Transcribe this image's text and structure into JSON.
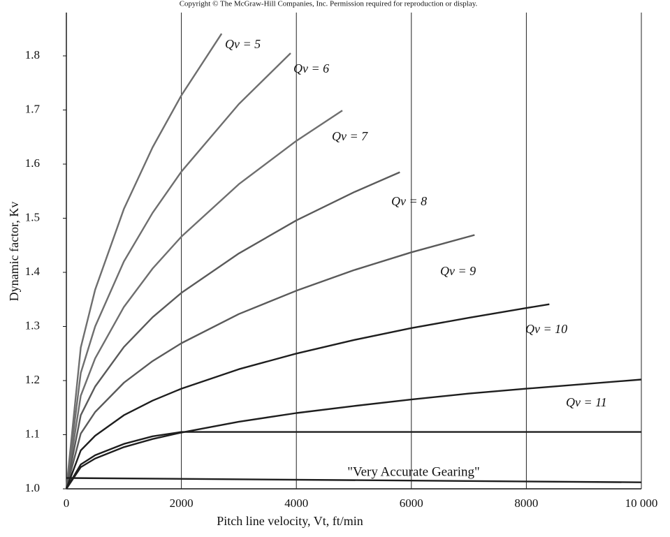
{
  "chart_data": {
    "type": "line",
    "header": "Copyright © The McGraw-Hill Companies, Inc. Permission required for reproduction or display.",
    "xlabel": "Pitch line velocity, Vt, ft/min",
    "ylabel": "Dynamic factor, Kv",
    "annotation": "\"Very Accurate Gearing\"",
    "xlim": [
      0,
      10000
    ],
    "ylim": [
      1,
      1.88
    ],
    "xticks": [
      0,
      2000,
      4000,
      6000,
      8000,
      {
        "value": 10000,
        "label": "10 000"
      }
    ],
    "yticks": [
      {
        "value": 1,
        "label": "1.0"
      },
      1.1,
      1.2,
      1.3,
      1.4,
      1.5,
      1.6,
      1.7,
      1.8
    ],
    "grid": "x",
    "series": [
      {
        "name": "Qv = 5",
        "color": "#6e6e6e",
        "x": [
          0,
          250,
          500,
          1000,
          1500,
          2000,
          2700
        ],
        "values": [
          1,
          1.261,
          1.368,
          1.517,
          1.631,
          1.727,
          1.841
        ]
      },
      {
        "name": "Qv = 6",
        "color": "#6e6e6e",
        "x": [
          0,
          250,
          500,
          1000,
          1500,
          2000,
          3000,
          3900
        ],
        "values": [
          1,
          1.214,
          1.3,
          1.42,
          1.51,
          1.586,
          1.711,
          1.805
        ]
      },
      {
        "name": "Qv = 7",
        "color": "#6e6e6e",
        "x": [
          0,
          250,
          500,
          1000,
          1500,
          2000,
          3000,
          4000,
          4800
        ],
        "values": [
          1,
          1.172,
          1.241,
          1.336,
          1.407,
          1.466,
          1.563,
          1.643,
          1.699
        ]
      },
      {
        "name": "Qv = 8",
        "color": "#5a5a5a",
        "x": [
          0,
          250,
          500,
          1000,
          1500,
          2000,
          3000,
          4000,
          5000,
          5800
        ],
        "values": [
          1,
          1.136,
          1.189,
          1.262,
          1.317,
          1.362,
          1.435,
          1.496,
          1.548,
          1.585
        ]
      },
      {
        "name": "Qv = 9",
        "color": "#5a5a5a",
        "x": [
          0,
          250,
          500,
          1000,
          1500,
          2000,
          3000,
          4000,
          5000,
          6000,
          7100
        ],
        "values": [
          1,
          1.102,
          1.142,
          1.196,
          1.236,
          1.269,
          1.323,
          1.366,
          1.404,
          1.437,
          1.469
        ]
      },
      {
        "name": "Qv = 10",
        "color": "#1e1e1e",
        "x": [
          0,
          250,
          500,
          1000,
          1500,
          2000,
          3000,
          4000,
          5000,
          6000,
          7000,
          8000,
          8400
        ],
        "values": [
          1,
          1.071,
          1.098,
          1.136,
          1.163,
          1.185,
          1.221,
          1.25,
          1.275,
          1.297,
          1.316,
          1.334,
          1.341
        ]
      },
      {
        "name": "Qv = 11",
        "color": "#1e1e1e",
        "x": [
          0,
          250,
          500,
          1000,
          1500,
          2000,
          3000,
          4000,
          5000,
          6000,
          7000,
          8000,
          10000
        ],
        "values": [
          1,
          1.04,
          1.056,
          1.077,
          1.092,
          1.104,
          1.124,
          1.14,
          1.153,
          1.165,
          1.176,
          1.185,
          1.202
        ]
      },
      {
        "color": "#1e1e1e",
        "x": [
          0,
          250,
          500,
          1000,
          1500,
          2000,
          10000
        ],
        "values": [
          1,
          1.045,
          1.062,
          1.083,
          1.097,
          1.105,
          1.105
        ]
      },
      {
        "color": "#1e1e1e",
        "x": [
          0,
          10000
        ],
        "values": [
          1.02,
          1.012
        ]
      }
    ]
  }
}
